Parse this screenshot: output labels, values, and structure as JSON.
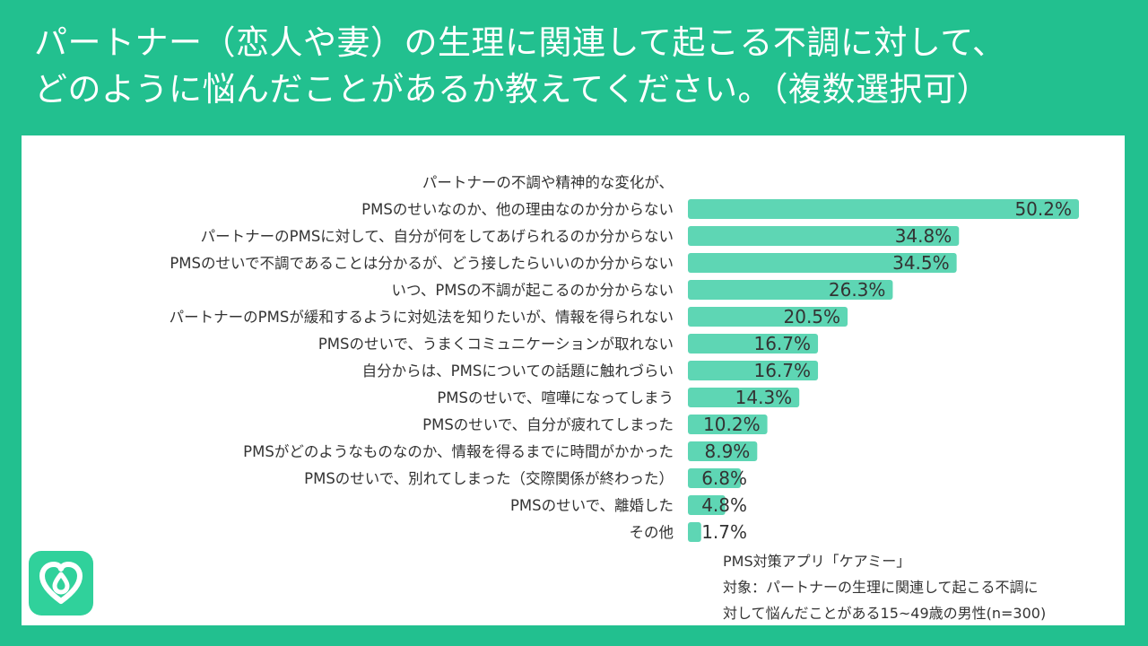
{
  "title_lines": [
    "パートナー（恋人や妻）の生理に関連して起こる不調に対して、",
    "どのように悩んだことがあるか教えてください。（複数選択可）"
  ],
  "chart_data": {
    "type": "bar",
    "orientation": "horizontal",
    "categories": [
      [
        "パートナーの不調や精神的な変化が、",
        "PMSのせいなのか、他の理由なのか分からない"
      ],
      [
        "パートナーのPMSに対して、自分が何をしてあげられるのか分からない"
      ],
      [
        "PMSのせいで不調であることは分かるが、どう接したらいいのか分からない"
      ],
      [
        "いつ、PMSの不調が起こるのか分からない"
      ],
      [
        "パートナーのPMSが緩和するように対処法を知りたいが、情報を得られない"
      ],
      [
        "PMSのせいで、うまくコミュニケーションが取れない"
      ],
      [
        "自分からは、PMSについての話題に触れづらい"
      ],
      [
        "PMSのせいで、喧嘩になってしまう"
      ],
      [
        "PMSのせいで、自分が疲れてしまった"
      ],
      [
        "PMSがどのようなものなのか、情報を得るまでに時間がかかった"
      ],
      [
        "PMSのせいで、別れてしまった（交際関係が終わった）"
      ],
      [
        "PMSのせいで、離婚した"
      ],
      [
        "その他"
      ]
    ],
    "values": [
      50.2,
      34.8,
      34.5,
      26.3,
      20.5,
      16.7,
      16.7,
      14.3,
      10.2,
      8.9,
      6.8,
      4.8,
      1.7
    ],
    "value_labels": [
      "50.2%",
      "34.8%",
      "34.5%",
      "26.3%",
      "20.5%",
      "16.7%",
      "16.7%",
      "14.3%",
      "10.2%",
      "8.9%",
      "6.8%",
      "4.8%",
      "1.7%"
    ],
    "xlim": [
      0,
      50.2
    ],
    "bar_color": "#5ed6b4",
    "grid": false,
    "legend": "none"
  },
  "footer": {
    "source": "PMS対策アプリ「ケアミー」",
    "target_line1": "対象：パートナーの生理に関連して起こる不調に",
    "target_line2": "対して悩んだことがある15~49歳の男性(n=300)"
  },
  "colors": {
    "background": "#22c08f",
    "card": "#ffffff",
    "bar": "#5ed6b4",
    "logo": "#30d19b"
  },
  "logo_icon": "heart-drop-logo-icon"
}
